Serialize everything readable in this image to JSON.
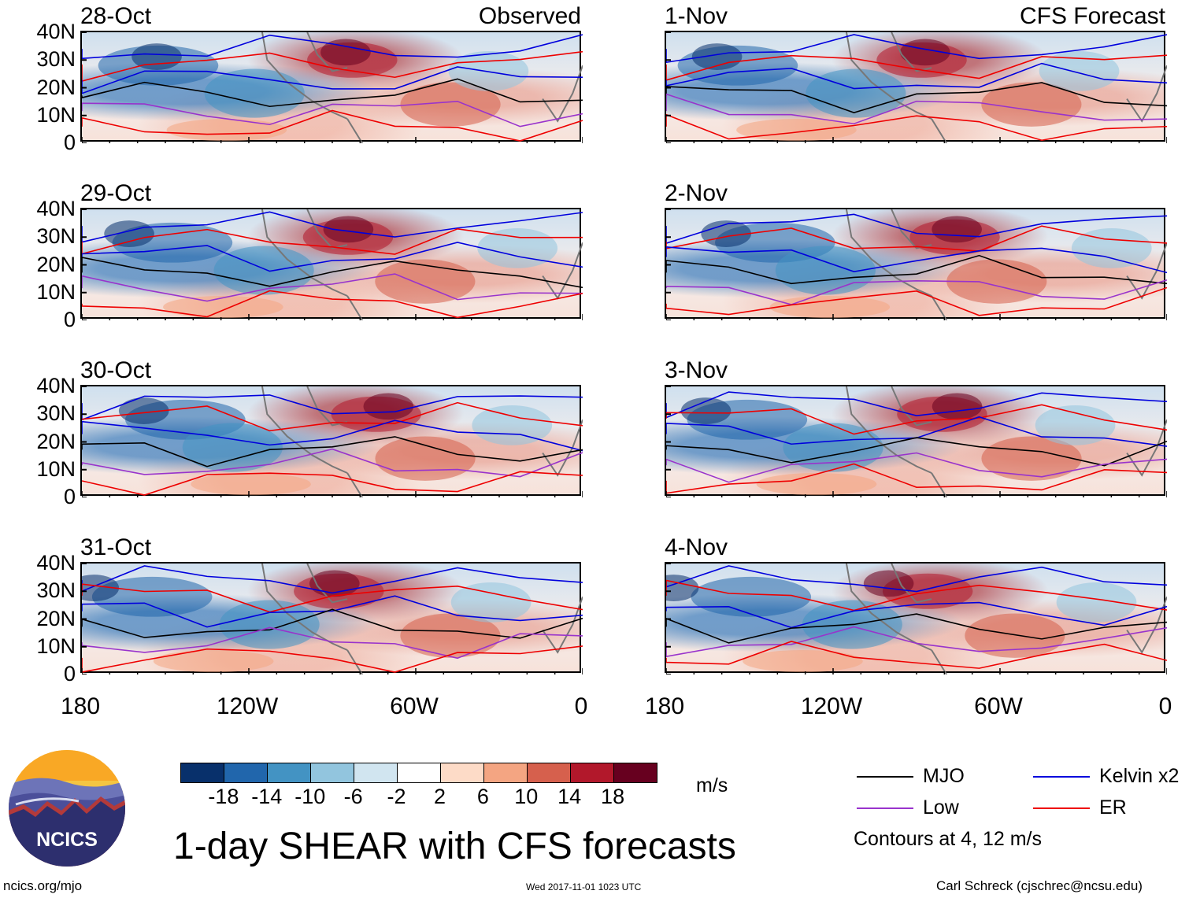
{
  "chart_data": [
    {
      "type": "heatmap",
      "title": "28-Oct",
      "tag": "Observed",
      "variable": "vertical wind shear anomaly (m/s)",
      "y_ticks": [
        "40N",
        "30N",
        "20N",
        "10N",
        "0"
      ],
      "x_ticks": [
        "180",
        "120W",
        "60W",
        "0"
      ],
      "ylim": [
        0,
        40
      ],
      "xlim": [
        -180,
        0
      ]
    },
    {
      "type": "heatmap",
      "title": "29-Oct",
      "tag": "",
      "variable": "vertical wind shear anomaly (m/s)",
      "y_ticks": [
        "40N",
        "30N",
        "20N",
        "10N",
        "0"
      ],
      "x_ticks": [
        "180",
        "120W",
        "60W",
        "0"
      ],
      "ylim": [
        0,
        40
      ],
      "xlim": [
        -180,
        0
      ]
    },
    {
      "type": "heatmap",
      "title": "30-Oct",
      "tag": "",
      "variable": "vertical wind shear anomaly (m/s)",
      "y_ticks": [
        "40N",
        "30N",
        "20N",
        "10N",
        "0"
      ],
      "x_ticks": [
        "180",
        "120W",
        "60W",
        "0"
      ],
      "ylim": [
        0,
        40
      ],
      "xlim": [
        -180,
        0
      ]
    },
    {
      "type": "heatmap",
      "title": "31-Oct",
      "tag": "",
      "variable": "vertical wind shear anomaly (m/s)",
      "y_ticks": [
        "40N",
        "30N",
        "20N",
        "10N",
        "0"
      ],
      "x_ticks": [
        "180",
        "120W",
        "60W",
        "0"
      ],
      "ylim": [
        0,
        40
      ],
      "xlim": [
        -180,
        0
      ]
    },
    {
      "type": "heatmap",
      "title": "1-Nov",
      "tag": "CFS Forecast",
      "variable": "vertical wind shear anomaly (m/s)",
      "y_ticks": [
        "40N",
        "30N",
        "20N",
        "10N",
        "0"
      ],
      "x_ticks": [
        "180",
        "120W",
        "60W",
        "0"
      ],
      "ylim": [
        0,
        40
      ],
      "xlim": [
        -180,
        0
      ]
    },
    {
      "type": "heatmap",
      "title": "2-Nov",
      "tag": "",
      "variable": "vertical wind shear anomaly (m/s)",
      "y_ticks": [
        "40N",
        "30N",
        "20N",
        "10N",
        "0"
      ],
      "x_ticks": [
        "180",
        "120W",
        "60W",
        "0"
      ],
      "ylim": [
        0,
        40
      ],
      "xlim": [
        -180,
        0
      ]
    },
    {
      "type": "heatmap",
      "title": "3-Nov",
      "tag": "",
      "variable": "vertical wind shear anomaly (m/s)",
      "y_ticks": [
        "40N",
        "30N",
        "20N",
        "10N",
        "0"
      ],
      "x_ticks": [
        "180",
        "120W",
        "60W",
        "0"
      ],
      "ylim": [
        0,
        40
      ],
      "xlim": [
        -180,
        0
      ]
    },
    {
      "type": "heatmap",
      "title": "4-Nov",
      "tag": "",
      "variable": "vertical wind shear anomaly (m/s)",
      "y_ticks": [
        "40N",
        "30N",
        "20N",
        "10N",
        "0"
      ],
      "x_ticks": [
        "180",
        "120W",
        "60W",
        "0"
      ],
      "ylim": [
        0,
        40
      ],
      "xlim": [
        -180,
        0
      ]
    }
  ],
  "colorbar": {
    "unit": "m/s",
    "labels": [
      "-18",
      "-14",
      "-10",
      "-6",
      "-2",
      "2",
      "6",
      "10",
      "14",
      "18"
    ],
    "colors": [
      "#08306b",
      "#2166ac",
      "#4393c3",
      "#92c5de",
      "#d1e5f0",
      "#ffffff",
      "#fddbc7",
      "#f4a582",
      "#d6604d",
      "#b2182b",
      "#67001f"
    ]
  },
  "legend": {
    "items": [
      {
        "label": "MJO",
        "color": "#000000"
      },
      {
        "label": "Low",
        "color": "#9933cc"
      },
      {
        "label": "Kelvin x2",
        "color": "#0000dd"
      },
      {
        "label": "ER",
        "color": "#ee0000"
      }
    ],
    "note": "Contours at 4, 12 m/s"
  },
  "footer": {
    "title": "1-day SHEAR with CFS forecasts",
    "logo_text": "NCICS",
    "url": "ncics.org/mjo",
    "timestamp": "Wed 2017-11-01 1023 UTC",
    "author": "Carl Schreck (cjschrec@ncsu.edu)"
  }
}
